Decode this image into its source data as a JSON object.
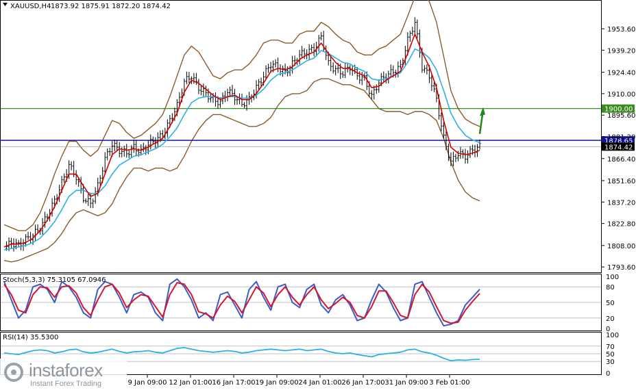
{
  "header": {
    "symbol": "XAUUSD,H4",
    "ohlc": "1873.92 1875.91 1872.20 1874.42",
    "stoch_label": "Stoch(5,3,3) 75.3105 67.0946",
    "rsi_label": "RSI(14) 35.5300"
  },
  "colors": {
    "candles": "#000000",
    "ma_fast": "#d40000",
    "ma_slow": "#2ab0e6",
    "bollinger": "#8b5a2b",
    "support": "#3a8a22",
    "resistance": "#1414a0",
    "stoch_main": "#3a5cc8",
    "stoch_signal": "#d4142c",
    "rsi": "#2ab0e6",
    "arrow": "#1b8a1b"
  },
  "levels": {
    "green_line": 1900.0,
    "green_label": "1900.00",
    "blue_line": 1878.65,
    "blue_label": "1878.65",
    "last_price": 1874.42,
    "last_label": "1874.42"
  },
  "chart_data": [
    {
      "type": "candlestick",
      "title": "XAUUSD,H4",
      "ylim": [
        1790,
        1972
      ],
      "y_ticks": [
        "1953.60",
        "1939.20",
        "1924.40",
        "1910.00",
        "1895.60",
        "1881.20",
        "1866.40",
        "1851.60",
        "1837.20",
        "1822.80",
        "1808.00",
        "1793.60"
      ],
      "x_tick_labels": [
        "9 Jan 09:00",
        "12 Jan 01:00",
        "16 Jan 17:00",
        "19 Jan 09:00",
        "24 Jan 01:00",
        "26 Jan 17:00",
        "31 Jan 09:00",
        "3 Feb 01:00"
      ],
      "close_path": [
        1806,
        1810,
        1808,
        1812,
        1815,
        1820,
        1828,
        1838,
        1850,
        1862,
        1854,
        1840,
        1836,
        1848,
        1866,
        1876,
        1872,
        1870,
        1874,
        1871,
        1876,
        1879,
        1882,
        1892,
        1902,
        1918,
        1922,
        1914,
        1910,
        1906,
        1904,
        1912,
        1908,
        1903,
        1906,
        1914,
        1922,
        1930,
        1928,
        1924,
        1930,
        1936,
        1938,
        1940,
        1948,
        1930,
        1926,
        1924,
        1928,
        1922,
        1920,
        1908,
        1918,
        1922,
        1925,
        1928,
        1946,
        1958,
        1928,
        1922,
        1906,
        1880,
        1864,
        1870,
        1868,
        1872,
        1874.42
      ],
      "series": [
        {
          "name": "",
          "kind": "fast_ma",
          "values": [
            1807,
            1809,
            1809,
            1810,
            1813,
            1818,
            1825,
            1834,
            1845,
            1856,
            1856,
            1848,
            1841,
            1843,
            1856,
            1869,
            1873,
            1872,
            1873,
            1872,
            1874,
            1877,
            1880,
            1888,
            1897,
            1911,
            1919,
            1917,
            1913,
            1909,
            1906,
            1908,
            1909,
            1906,
            1906,
            1910,
            1917,
            1925,
            1927,
            1926,
            1928,
            1933,
            1936,
            1938,
            1944,
            1937,
            1931,
            1927,
            1927,
            1924,
            1922,
            1914,
            1915,
            1919,
            1922,
            1925,
            1937,
            1950,
            1938,
            1928,
            1914,
            1892,
            1874,
            1870,
            1869,
            1870,
            1872
          ]
        },
        {
          "name": "",
          "kind": "slow_ma",
          "values": [
            1805,
            1806,
            1807,
            1808,
            1810,
            1813,
            1818,
            1824,
            1832,
            1841,
            1845,
            1845,
            1843,
            1843,
            1848,
            1856,
            1862,
            1865,
            1868,
            1869,
            1871,
            1873,
            1876,
            1881,
            1887,
            1896,
            1904,
            1907,
            1908,
            1908,
            1907,
            1908,
            1908,
            1907,
            1907,
            1909,
            1913,
            1919,
            1923,
            1924,
            1926,
            1929,
            1932,
            1934,
            1939,
            1937,
            1934,
            1931,
            1930,
            1927,
            1925,
            1920,
            1919,
            1920,
            1922,
            1924,
            1931,
            1940,
            1938,
            1934,
            1926,
            1912,
            1897,
            1888,
            1882,
            1879,
            1877
          ]
        },
        {
          "name": "",
          "kind": "bb_upper",
          "values": [
            1822,
            1820,
            1818,
            1818,
            1822,
            1830,
            1842,
            1856,
            1868,
            1878,
            1878,
            1872,
            1868,
            1872,
            1882,
            1892,
            1890,
            1884,
            1880,
            1882,
            1886,
            1890,
            1896,
            1908,
            1922,
            1936,
            1942,
            1938,
            1930,
            1922,
            1920,
            1924,
            1926,
            1926,
            1930,
            1936,
            1944,
            1946,
            1946,
            1944,
            1944,
            1950,
            1952,
            1952,
            1958,
            1955,
            1950,
            1946,
            1944,
            1938,
            1936,
            1936,
            1940,
            1942,
            1946,
            1950,
            1962,
            1975,
            1978,
            1972,
            1958,
            1935,
            1912,
            1900,
            1893,
            1890,
            1888
          ]
        },
        {
          "name": "",
          "kind": "bb_lower",
          "values": [
            1798,
            1797,
            1798,
            1800,
            1802,
            1804,
            1806,
            1810,
            1816,
            1824,
            1830,
            1832,
            1830,
            1828,
            1830,
            1836,
            1846,
            1854,
            1860,
            1860,
            1858,
            1860,
            1860,
            1858,
            1860,
            1868,
            1878,
            1886,
            1892,
            1896,
            1896,
            1894,
            1892,
            1890,
            1888,
            1888,
            1890,
            1894,
            1902,
            1908,
            1910,
            1910,
            1912,
            1918,
            1920,
            1920,
            1918,
            1916,
            1916,
            1914,
            1912,
            1906,
            1900,
            1898,
            1898,
            1898,
            1896,
            1898,
            1898,
            1896,
            1892,
            1880,
            1864,
            1852,
            1844,
            1840,
            1838
          ]
        }
      ]
    },
    {
      "type": "line",
      "title": "Stoch(5,3,3) 75.3105 67.0946",
      "ylim": [
        0,
        100
      ],
      "y_ticks": [
        "100",
        "80",
        "50",
        "20",
        "0"
      ],
      "series": [
        {
          "name": "",
          "kind": "main",
          "values": [
            90,
            55,
            20,
            35,
            80,
            85,
            75,
            50,
            90,
            80,
            60,
            30,
            20,
            75,
            90,
            85,
            60,
            30,
            65,
            70,
            60,
            30,
            15,
            85,
            95,
            80,
            55,
            20,
            30,
            15,
            65,
            70,
            45,
            20,
            75,
            90,
            60,
            35,
            80,
            85,
            50,
            40,
            75,
            85,
            45,
            30,
            55,
            65,
            45,
            15,
            20,
            55,
            85,
            70,
            40,
            15,
            20,
            85,
            90,
            60,
            30,
            5,
            8,
            15,
            45,
            60,
            75.31
          ]
        },
        {
          "name": "",
          "kind": "signal",
          "values": [
            85,
            65,
            35,
            30,
            65,
            80,
            78,
            60,
            80,
            82,
            68,
            40,
            25,
            55,
            80,
            85,
            68,
            40,
            55,
            65,
            62,
            42,
            22,
            65,
            88,
            85,
            65,
            32,
            28,
            20,
            45,
            62,
            52,
            30,
            55,
            80,
            68,
            42,
            65,
            80,
            60,
            45,
            65,
            80,
            55,
            38,
            48,
            60,
            50,
            25,
            20,
            42,
            72,
            72,
            50,
            25,
            20,
            65,
            85,
            70,
            42,
            15,
            10,
            12,
            35,
            52,
            67.09
          ]
        }
      ]
    },
    {
      "type": "line",
      "title": "RSI(14) 35.5300",
      "ylim": [
        0,
        100
      ],
      "y_ticks": [
        "100",
        "70",
        "50",
        "30",
        "0"
      ],
      "series": [
        {
          "name": "",
          "values": [
            52,
            50,
            48,
            53,
            58,
            60,
            58,
            52,
            55,
            60,
            62,
            55,
            52,
            54,
            58,
            62,
            56,
            52,
            55,
            56,
            58,
            54,
            52,
            58,
            64,
            66,
            62,
            58,
            56,
            54,
            56,
            58,
            56,
            52,
            54,
            58,
            60,
            62,
            60,
            58,
            60,
            62,
            58,
            60,
            62,
            56,
            52,
            50,
            52,
            48,
            45,
            42,
            48,
            50,
            52,
            54,
            60,
            62,
            55,
            52,
            46,
            38,
            32,
            34,
            33,
            35,
            35.53
          ]
        }
      ]
    }
  ]
}
